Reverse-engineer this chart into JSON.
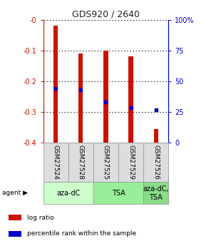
{
  "title": "GDS920 / 2640",
  "samples": [
    "GSM27524",
    "GSM27528",
    "GSM27525",
    "GSM27529",
    "GSM27526"
  ],
  "bar_tops": [
    -0.02,
    -0.11,
    -0.1,
    -0.12,
    -0.355
  ],
  "bar_bottom": -0.4,
  "percentile_ranks_pct": [
    44,
    43,
    33,
    28.5,
    27
  ],
  "ylim_left": [
    -0.4,
    0.0
  ],
  "ylim_right": [
    0,
    100
  ],
  "right_ticks": [
    0,
    25,
    50,
    75,
    100
  ],
  "right_tick_labels": [
    "0",
    "25",
    "50",
    "75",
    "100%"
  ],
  "left_ticks": [
    -0.4,
    -0.3,
    -0.2,
    -0.1,
    0.0
  ],
  "left_tick_labels": [
    "-0.4",
    "-0.3",
    "-0.2",
    "-0.1",
    "-0"
  ],
  "agents": [
    {
      "label": "aza-dC",
      "span": [
        0,
        2
      ],
      "color": "#ccffcc"
    },
    {
      "label": "TSA",
      "span": [
        2,
        4
      ],
      "color": "#99ee99"
    },
    {
      "label": "aza-dC,\nTSA",
      "span": [
        4,
        5
      ],
      "color": "#88dd88"
    }
  ],
  "bar_color": "#cc1100",
  "marker_color": "#0000cc",
  "bar_width": 0.18,
  "bg_color": "#ffffff",
  "grid_color": "#000000",
  "left_axis_color": "#cc1100",
  "right_axis_color": "#0000cc",
  "legend_items": [
    {
      "label": "log ratio",
      "color": "#cc1100"
    },
    {
      "label": "percentile rank within the sample",
      "color": "#0000cc"
    }
  ],
  "cell_color": "#dddddd",
  "cell_edge_color": "#999999",
  "agent_label_fontsize": 7,
  "sample_label_fontsize": 6.5,
  "legend_fontsize": 6.5,
  "tick_fontsize": 7,
  "title_fontsize": 9
}
